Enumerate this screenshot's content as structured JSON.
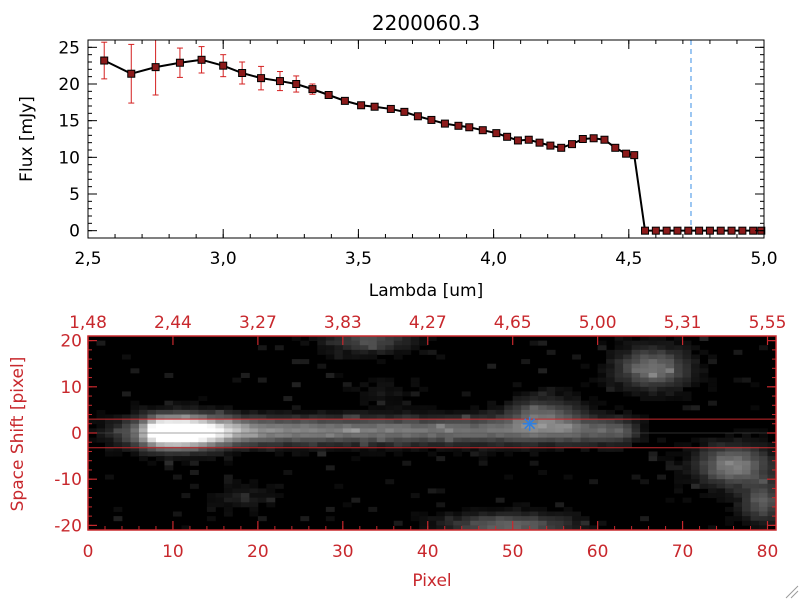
{
  "title": "2200060.3",
  "colors": {
    "axis_top": "#000000",
    "axis_bottom": "#c8282d",
    "marker": "#8b1a1a",
    "errorbar": "#d42020",
    "line": "#000000",
    "cutoff_line": "#3a8ee6",
    "star": "#2f7fe0"
  },
  "chart_data": [
    {
      "type": "line",
      "name": "spectrum",
      "xlabel": "Lambda [um]",
      "ylabel": "Flux [mJy]",
      "xlim": [
        2.5,
        5.0
      ],
      "ylim": [
        -1,
        26
      ],
      "xticks": [
        "2.5",
        "3.0",
        "3.5",
        "4.0",
        "4.5",
        "5.0"
      ],
      "yticks": [
        "0",
        "5",
        "10",
        "15",
        "20",
        "25"
      ],
      "cutoff_x": 4.73,
      "x": [
        2.56,
        2.66,
        2.75,
        2.84,
        2.92,
        3.0,
        3.07,
        3.14,
        3.21,
        3.27,
        3.33,
        3.39,
        3.45,
        3.51,
        3.56,
        3.62,
        3.67,
        3.72,
        3.77,
        3.82,
        3.87,
        3.91,
        3.96,
        4.01,
        4.05,
        4.09,
        4.13,
        4.17,
        4.21,
        4.25,
        4.29,
        4.33,
        4.37,
        4.41,
        4.45,
        4.49,
        4.52,
        4.56,
        4.6,
        4.64,
        4.68,
        4.72,
        4.76,
        4.8,
        4.84,
        4.88,
        4.92,
        4.96,
        4.99
      ],
      "y": [
        23.2,
        21.4,
        22.3,
        22.9,
        23.3,
        22.5,
        21.5,
        20.8,
        20.4,
        20.0,
        19.3,
        18.5,
        17.7,
        17.1,
        16.9,
        16.6,
        16.2,
        15.6,
        15.1,
        14.6,
        14.3,
        14.1,
        13.7,
        13.3,
        12.8,
        12.3,
        12.4,
        12.0,
        11.6,
        11.3,
        11.8,
        12.5,
        12.6,
        12.4,
        11.3,
        10.5,
        10.3,
        0.0,
        0.0,
        0.0,
        0.0,
        0.0,
        0.0,
        0.0,
        0.0,
        0.0,
        0.0,
        0.0,
        0.0
      ],
      "yerr": [
        2.5,
        4.0,
        3.8,
        2.0,
        1.8,
        1.5,
        1.5,
        1.6,
        1.3,
        1.1,
        0.7,
        0.4,
        0.3,
        0.3,
        0.3,
        0.3,
        0.3,
        0.3,
        0.3,
        0.3,
        0.3,
        0.3,
        0.3,
        0.3,
        0.3,
        0.3,
        0.3,
        0.3,
        0.3,
        0.3,
        0.3,
        0.3,
        0.3,
        0.3,
        0.3,
        0.3,
        0.3,
        0.0,
        0.0,
        0.0,
        0.0,
        0.0,
        0.0,
        0.0,
        0.0,
        0.0,
        0.0,
        0.0,
        0.0
      ]
    },
    {
      "type": "heatmap",
      "name": "spectral image",
      "xlabel": "Pixel",
      "ylabel": "Space Shift [pixel]",
      "xlim": [
        0,
        81
      ],
      "ylim": [
        -21,
        21
      ],
      "xticks": [
        "0",
        "10",
        "20",
        "30",
        "40",
        "50",
        "60",
        "70",
        "80"
      ],
      "yticks": [
        "-20",
        "-10",
        "0",
        "10",
        "20"
      ],
      "top_axis_ticks": [
        "1.48",
        "2.44",
        "3.27",
        "3.83",
        "4.27",
        "4.65",
        "5.00",
        "5.31",
        "5.55"
      ],
      "extraction_aperture": [
        -3.2,
        3.0
      ],
      "source_marker": {
        "x": 52,
        "y": 2
      },
      "sources": [
        {
          "x": 10.5,
          "y": 0,
          "sx": 4.0,
          "sy": 2.4,
          "amp": 0.95
        },
        {
          "x": 53.5,
          "y": 4,
          "sx": 3.0,
          "sy": 2.6,
          "amp": 0.35
        },
        {
          "x": 66.5,
          "y": 14,
          "sx": 3.0,
          "sy": 3.0,
          "amp": 0.45
        },
        {
          "x": 76,
          "y": -7,
          "sx": 3.0,
          "sy": 3.0,
          "amp": 0.5
        },
        {
          "x": 79.5,
          "y": -15,
          "sx": 1.8,
          "sy": 3.0,
          "amp": 0.35
        },
        {
          "x": 33,
          "y": 20,
          "sx": 3.5,
          "sy": 1.8,
          "amp": 0.3
        },
        {
          "x": 49.5,
          "y": -20,
          "sx": 5.0,
          "sy": 1.8,
          "amp": 0.4
        },
        {
          "x": 18,
          "y": -14,
          "sx": 2.5,
          "sy": 2.0,
          "amp": 0.1
        },
        {
          "x": 35,
          "y": 9,
          "sx": 2.5,
          "sy": 2.0,
          "amp": 0.08
        }
      ],
      "trace": {
        "y": 0.5,
        "sy": 2.0,
        "x0": 6,
        "x1": 66,
        "amp_start": 0.6,
        "amp_end": 0.35
      }
    }
  ]
}
